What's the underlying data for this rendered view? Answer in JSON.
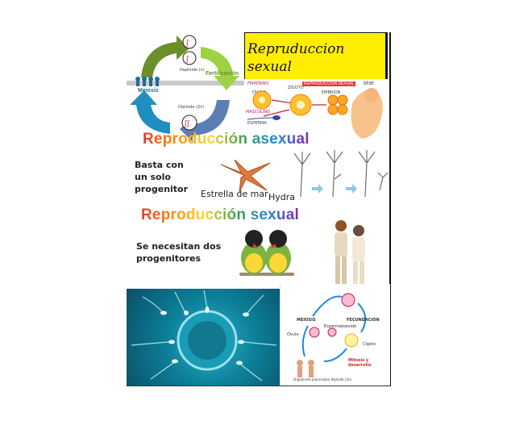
{
  "title": {
    "line1": "Repruduccion",
    "line2": "sexual"
  },
  "cycle_panel": {
    "fertilization_label": "Fertilización",
    "meiosis_label": "Meiosis",
    "haploid_label": "Haploide (n)",
    "diploid_label": "Diploide (2n)"
  },
  "embryo_panel": {
    "heading": "REPRODUCCION SEXUAL",
    "female_label": "FEMENINO",
    "zygote_label": "ZIGOTO",
    "embryo_label": "EMBRION",
    "oocyte_label": "OVULO",
    "male_label": "MASCULINO",
    "sperm_label": "ESPERMA",
    "baby_label": "BEBE"
  },
  "asexual": {
    "heading": "Reproducción asexual",
    "text_lines": [
      "Basta con",
      "un solo",
      "progenitor"
    ],
    "starfish_label": "Estrella de mar",
    "hydra_label": "Hydra"
  },
  "sexual": {
    "heading": "Reproducción sexual",
    "text_lines": [
      "Se necesitan dos",
      "progenitores"
    ]
  },
  "fertilization_cycle": {
    "meiosis": "MEIOSIS",
    "fecundation": "FECUNDACIÓN",
    "ovule": "Óvulo",
    "zygote": "Cigoto",
    "sperm": "Espermatozoide",
    "mitosis": "Mitosis y desarrollo",
    "organism": "Organismo pluricelular diploide (2n)"
  },
  "colors": {
    "title_bg": "#ffee00",
    "heading_red": "#e53935",
    "sperm_bg": "#0d7f98"
  }
}
